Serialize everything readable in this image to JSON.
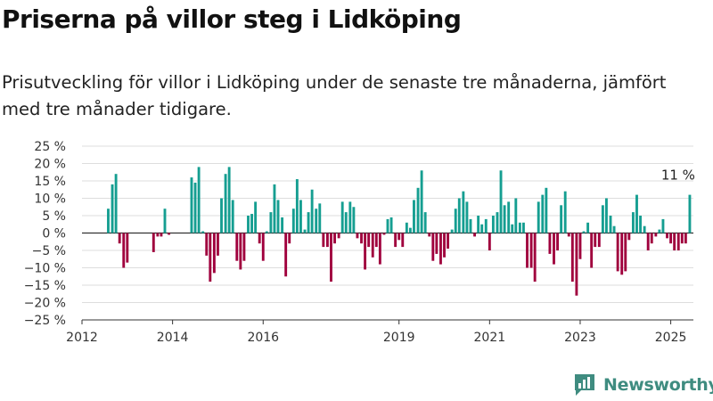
{
  "header": {
    "title": "Priserna på villor steg i Lidköping",
    "subtitle": "Prisutveckling för villor i Lidköping under de senaste tre månaderna, jämfört med tre månader tidigare."
  },
  "brand": {
    "name": "Newsworthy"
  },
  "colors": {
    "positive": "#159e91",
    "negative": "#a0003d",
    "grid": "#dddddd",
    "brand": "#3f8c80"
  },
  "chart_data": {
    "type": "bar",
    "title": "Priserna på villor steg i Lidköping",
    "xlabel": "",
    "ylabel": "",
    "ylim": [
      -25,
      25
    ],
    "yticks": [
      25,
      20,
      15,
      10,
      5,
      0,
      -5,
      -10,
      -15,
      -20,
      -25
    ],
    "ytick_labels": [
      "25 %",
      "20 %",
      "15 %",
      "10 %",
      "5 %",
      "0 %",
      "−5 %",
      "−10 %",
      "−15 %",
      "−20 %",
      "−25 %"
    ],
    "xticks": [
      2012,
      2014,
      2016,
      2019,
      2021,
      2023,
      2025
    ],
    "xlim": [
      2012.0,
      2025.5
    ],
    "grid": true,
    "annotation": {
      "text": "11 %",
      "x": 2025.42,
      "y": 11
    },
    "bars": [
      {
        "x": 2012.58,
        "y": 7
      },
      {
        "x": 2012.67,
        "y": 14
      },
      {
        "x": 2012.75,
        "y": 17
      },
      {
        "x": 2012.83,
        "y": -3
      },
      {
        "x": 2012.92,
        "y": -10
      },
      {
        "x": 2013.0,
        "y": -8.5
      },
      {
        "x": 2013.58,
        "y": -5.5
      },
      {
        "x": 2013.67,
        "y": -1
      },
      {
        "x": 2013.75,
        "y": -1
      },
      {
        "x": 2013.83,
        "y": 7
      },
      {
        "x": 2013.92,
        "y": -0.5
      },
      {
        "x": 2014.42,
        "y": 16
      },
      {
        "x": 2014.5,
        "y": 14.5
      },
      {
        "x": 2014.58,
        "y": 19
      },
      {
        "x": 2014.67,
        "y": 0.5
      },
      {
        "x": 2014.75,
        "y": -6.5
      },
      {
        "x": 2014.83,
        "y": -14
      },
      {
        "x": 2014.92,
        "y": -11.5
      },
      {
        "x": 2015.0,
        "y": -6.5
      },
      {
        "x": 2015.08,
        "y": 10
      },
      {
        "x": 2015.17,
        "y": 17
      },
      {
        "x": 2015.25,
        "y": 19
      },
      {
        "x": 2015.33,
        "y": 9.5
      },
      {
        "x": 2015.42,
        "y": -8
      },
      {
        "x": 2015.5,
        "y": -10.5
      },
      {
        "x": 2015.58,
        "y": -8
      },
      {
        "x": 2015.67,
        "y": 5
      },
      {
        "x": 2015.75,
        "y": 5.5
      },
      {
        "x": 2015.83,
        "y": 9
      },
      {
        "x": 2015.92,
        "y": -3
      },
      {
        "x": 2016.0,
        "y": -8
      },
      {
        "x": 2016.08,
        "y": 0.5
      },
      {
        "x": 2016.17,
        "y": 6
      },
      {
        "x": 2016.25,
        "y": 14
      },
      {
        "x": 2016.33,
        "y": 9.5
      },
      {
        "x": 2016.42,
        "y": 4.5
      },
      {
        "x": 2016.5,
        "y": -12.5
      },
      {
        "x": 2016.58,
        "y": -3
      },
      {
        "x": 2016.67,
        "y": 7
      },
      {
        "x": 2016.75,
        "y": 15.5
      },
      {
        "x": 2016.83,
        "y": 9.5
      },
      {
        "x": 2016.92,
        "y": 1
      },
      {
        "x": 2017.0,
        "y": 6
      },
      {
        "x": 2017.08,
        "y": 12.5
      },
      {
        "x": 2017.17,
        "y": 7
      },
      {
        "x": 2017.25,
        "y": 8.5
      },
      {
        "x": 2017.33,
        "y": -4
      },
      {
        "x": 2017.42,
        "y": -4
      },
      {
        "x": 2017.5,
        "y": -14
      },
      {
        "x": 2017.58,
        "y": -3
      },
      {
        "x": 2017.67,
        "y": -1.5
      },
      {
        "x": 2017.75,
        "y": 9
      },
      {
        "x": 2017.83,
        "y": 6
      },
      {
        "x": 2017.92,
        "y": 9
      },
      {
        "x": 2018.0,
        "y": 7.5
      },
      {
        "x": 2018.08,
        "y": -1.5
      },
      {
        "x": 2018.17,
        "y": -3
      },
      {
        "x": 2018.25,
        "y": -10.5
      },
      {
        "x": 2018.33,
        "y": -4
      },
      {
        "x": 2018.42,
        "y": -7
      },
      {
        "x": 2018.5,
        "y": -4
      },
      {
        "x": 2018.58,
        "y": -9
      },
      {
        "x": 2018.67,
        "y": -0.5
      },
      {
        "x": 2018.75,
        "y": 4
      },
      {
        "x": 2018.83,
        "y": 4.5
      },
      {
        "x": 2018.92,
        "y": -4
      },
      {
        "x": 2019.0,
        "y": -2
      },
      {
        "x": 2019.08,
        "y": -4
      },
      {
        "x": 2019.17,
        "y": 3
      },
      {
        "x": 2019.25,
        "y": 1.5
      },
      {
        "x": 2019.33,
        "y": 9.5
      },
      {
        "x": 2019.42,
        "y": 13
      },
      {
        "x": 2019.5,
        "y": 18
      },
      {
        "x": 2019.58,
        "y": 6
      },
      {
        "x": 2019.67,
        "y": -1
      },
      {
        "x": 2019.75,
        "y": -8
      },
      {
        "x": 2019.83,
        "y": -6
      },
      {
        "x": 2019.92,
        "y": -9
      },
      {
        "x": 2020.0,
        "y": -7
      },
      {
        "x": 2020.08,
        "y": -4.5
      },
      {
        "x": 2020.17,
        "y": 1
      },
      {
        "x": 2020.25,
        "y": 7
      },
      {
        "x": 2020.33,
        "y": 10
      },
      {
        "x": 2020.42,
        "y": 12
      },
      {
        "x": 2020.5,
        "y": 9
      },
      {
        "x": 2020.58,
        "y": 4
      },
      {
        "x": 2020.67,
        "y": -1
      },
      {
        "x": 2020.75,
        "y": 5
      },
      {
        "x": 2020.83,
        "y": 2.5
      },
      {
        "x": 2020.92,
        "y": 4
      },
      {
        "x": 2021.0,
        "y": -5
      },
      {
        "x": 2021.08,
        "y": 5
      },
      {
        "x": 2021.17,
        "y": 6
      },
      {
        "x": 2021.25,
        "y": 18
      },
      {
        "x": 2021.33,
        "y": 8
      },
      {
        "x": 2021.42,
        "y": 9
      },
      {
        "x": 2021.5,
        "y": 2.5
      },
      {
        "x": 2021.58,
        "y": 10
      },
      {
        "x": 2021.67,
        "y": 3
      },
      {
        "x": 2021.75,
        "y": 3
      },
      {
        "x": 2021.83,
        "y": -10
      },
      {
        "x": 2021.92,
        "y": -10
      },
      {
        "x": 2022.0,
        "y": -14
      },
      {
        "x": 2022.08,
        "y": 9
      },
      {
        "x": 2022.17,
        "y": 11
      },
      {
        "x": 2022.25,
        "y": 13
      },
      {
        "x": 2022.33,
        "y": -6
      },
      {
        "x": 2022.42,
        "y": -9
      },
      {
        "x": 2022.5,
        "y": -5
      },
      {
        "x": 2022.58,
        "y": 8
      },
      {
        "x": 2022.67,
        "y": 12
      },
      {
        "x": 2022.75,
        "y": -1
      },
      {
        "x": 2022.83,
        "y": -14
      },
      {
        "x": 2022.92,
        "y": -18
      },
      {
        "x": 2023.0,
        "y": -7.5
      },
      {
        "x": 2023.08,
        "y": 0.5
      },
      {
        "x": 2023.17,
        "y": 3
      },
      {
        "x": 2023.25,
        "y": -10
      },
      {
        "x": 2023.33,
        "y": -4
      },
      {
        "x": 2023.42,
        "y": -4
      },
      {
        "x": 2023.5,
        "y": 8
      },
      {
        "x": 2023.58,
        "y": 10
      },
      {
        "x": 2023.67,
        "y": 5
      },
      {
        "x": 2023.75,
        "y": 2
      },
      {
        "x": 2023.83,
        "y": -11
      },
      {
        "x": 2023.92,
        "y": -12
      },
      {
        "x": 2024.0,
        "y": -11
      },
      {
        "x": 2024.08,
        "y": -2
      },
      {
        "x": 2024.17,
        "y": 6
      },
      {
        "x": 2024.25,
        "y": 11
      },
      {
        "x": 2024.33,
        "y": 5
      },
      {
        "x": 2024.42,
        "y": 2
      },
      {
        "x": 2024.5,
        "y": -5
      },
      {
        "x": 2024.58,
        "y": -3
      },
      {
        "x": 2024.67,
        "y": -1
      },
      {
        "x": 2024.75,
        "y": 1
      },
      {
        "x": 2024.83,
        "y": 4
      },
      {
        "x": 2024.92,
        "y": -1.5
      },
      {
        "x": 2025.0,
        "y": -3
      },
      {
        "x": 2025.08,
        "y": -5
      },
      {
        "x": 2025.17,
        "y": -5
      },
      {
        "x": 2025.25,
        "y": -3
      },
      {
        "x": 2025.33,
        "y": -3
      },
      {
        "x": 2025.42,
        "y": 11
      }
    ]
  }
}
